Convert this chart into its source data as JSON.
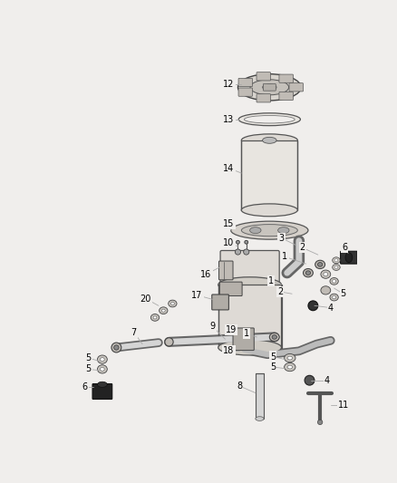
{
  "bg_color": "#f0eeec",
  "fig_width": 4.38,
  "fig_height": 5.33,
  "dpi": 100,
  "line_color": "#888888",
  "text_color": "#000000",
  "text_fontsize": 7.0,
  "part_edge": "#555555",
  "part_fill_light": "#e8e5e0",
  "part_fill_mid": "#d5d0c8",
  "part_fill_dark": "#b8b4ae"
}
